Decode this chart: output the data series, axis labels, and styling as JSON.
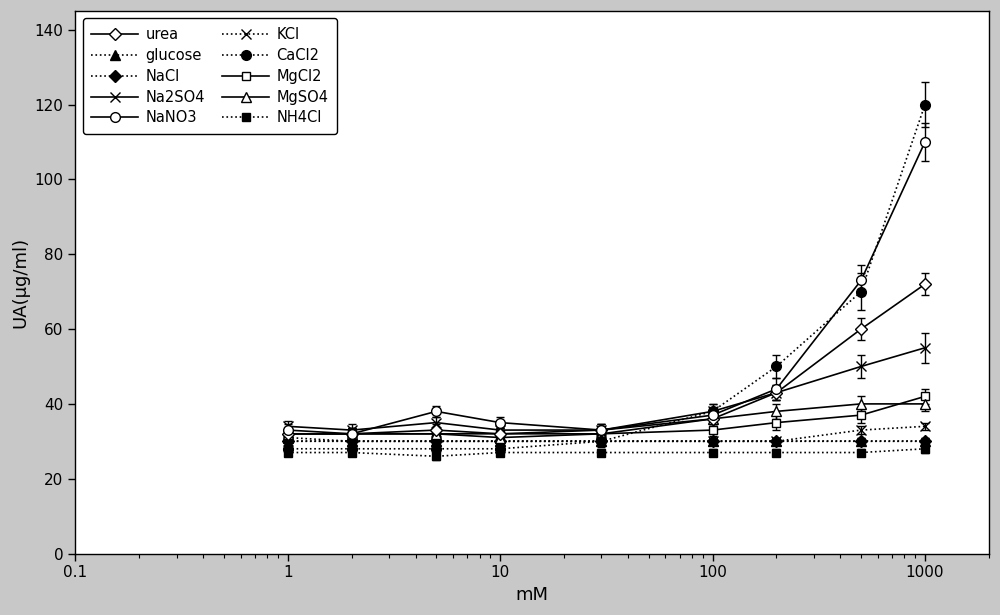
{
  "x": [
    1,
    2,
    5,
    10,
    30,
    100,
    200,
    500,
    1000
  ],
  "series": {
    "urea": {
      "y": [
        32,
        32,
        33,
        32,
        33,
        36,
        43,
        60,
        72
      ],
      "yerr": [
        1.5,
        1.5,
        1.5,
        1.5,
        1.5,
        2,
        2,
        3,
        3
      ],
      "linestyle": "-",
      "marker": "D",
      "markerfacecolor": "white",
      "markersize": 6,
      "label": "urea"
    },
    "NaCl": {
      "y": [
        30,
        30,
        30,
        30,
        30,
        30,
        30,
        30,
        30
      ],
      "yerr": [
        1,
        1,
        1,
        1,
        1,
        1,
        1,
        1,
        1
      ],
      "linestyle": ":",
      "marker": "D",
      "markerfacecolor": "black",
      "markersize": 6,
      "label": "NaCl"
    },
    "NaNO3": {
      "y": [
        33,
        32,
        38,
        35,
        33,
        37,
        44,
        73,
        110
      ],
      "yerr": [
        1.5,
        1.5,
        1.5,
        1.5,
        1.5,
        2,
        3,
        4,
        5
      ],
      "linestyle": "-",
      "marker": "o",
      "markerfacecolor": "white",
      "markersize": 7,
      "label": "NaNO3"
    },
    "CaCl2": {
      "y": [
        28,
        28,
        28,
        28,
        30,
        38,
        50,
        70,
        120
      ],
      "yerr": [
        1.5,
        1.5,
        1.5,
        1.5,
        1.5,
        2,
        3,
        5,
        6
      ],
      "linestyle": ":",
      "marker": "o",
      "markerfacecolor": "black",
      "markersize": 7,
      "label": "CaCl2"
    },
    "MgSO4": {
      "y": [
        32,
        32,
        32,
        31,
        32,
        36,
        38,
        40,
        40
      ],
      "yerr": [
        1.5,
        1.5,
        1.5,
        1.5,
        1.5,
        2,
        2,
        2,
        2
      ],
      "linestyle": "-",
      "marker": "^",
      "markerfacecolor": "white",
      "markersize": 7,
      "label": "MgSO4"
    },
    "glucose": {
      "y": [
        31,
        30,
        30,
        30,
        30,
        30,
        30,
        30,
        30
      ],
      "yerr": [
        1,
        1,
        1,
        1,
        1,
        1,
        1,
        1,
        1
      ],
      "linestyle": ":",
      "marker": "^",
      "markerfacecolor": "black",
      "markersize": 7,
      "label": "glucose"
    },
    "Na2SO4": {
      "y": [
        34,
        33,
        35,
        33,
        33,
        38,
        43,
        50,
        55
      ],
      "yerr": [
        1.5,
        1.5,
        1.5,
        1.5,
        1.5,
        2,
        2,
        3,
        4
      ],
      "linestyle": "-",
      "marker": "x",
      "markerfacecolor": "black",
      "markersize": 7,
      "label": "Na2SO4"
    },
    "KCl": {
      "y": [
        30,
        30,
        30,
        30,
        30,
        30,
        30,
        33,
        34
      ],
      "yerr": [
        1,
        1,
        1,
        1,
        1,
        1,
        1,
        1,
        1
      ],
      "linestyle": ":",
      "marker": "x",
      "markerfacecolor": "black",
      "markersize": 7,
      "label": "KCl"
    },
    "MgCl2": {
      "y": [
        32,
        32,
        32,
        32,
        32,
        33,
        35,
        37,
        42
      ],
      "yerr": [
        1.5,
        1.5,
        1.5,
        1.5,
        1.5,
        1.5,
        2,
        2,
        2
      ],
      "linestyle": "-",
      "marker": "s",
      "markerfacecolor": "white",
      "markersize": 6,
      "label": "MgCl2"
    },
    "NH4Cl": {
      "y": [
        27,
        27,
        26,
        27,
        27,
        27,
        27,
        27,
        28
      ],
      "yerr": [
        1,
        1,
        1,
        1,
        1,
        1,
        1,
        1,
        1
      ],
      "linestyle": ":",
      "marker": "s",
      "markerfacecolor": "black",
      "markersize": 6,
      "label": "NH4Cl"
    }
  },
  "xlabel": "mM",
  "ylabel": "UA(μg/ml)",
  "ylim": [
    0,
    145
  ],
  "yticks": [
    0,
    20,
    40,
    60,
    80,
    100,
    120,
    140
  ],
  "xlim": [
    0.1,
    2000
  ],
  "background_color": "#ffffff",
  "legend_left": [
    "urea",
    "NaCl",
    "NaNO3",
    "CaCl2",
    "MgSO4"
  ],
  "legend_right": [
    "glucose",
    "Na2SO4",
    "KCl",
    "MgCl2",
    "NH4Cl"
  ],
  "legend_order": [
    "urea",
    "glucose",
    "NaCl",
    "Na2SO4",
    "NaNO3",
    "KCl",
    "CaCl2",
    "MgCl2",
    "MgSO4",
    "NH4Cl"
  ]
}
